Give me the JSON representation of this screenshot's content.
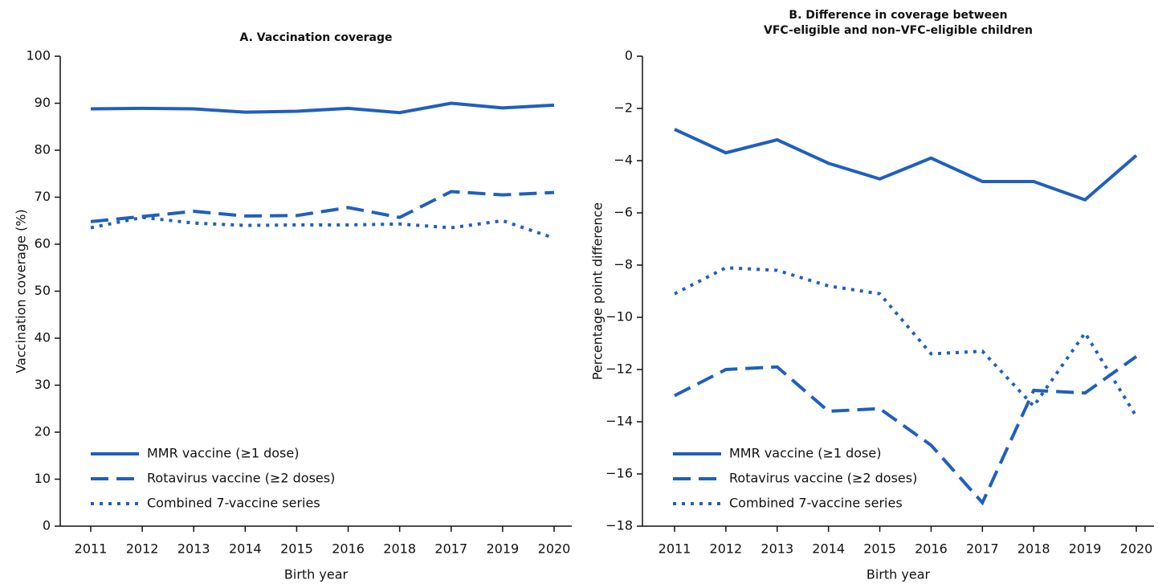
{
  "chart_data": [
    {
      "type": "line",
      "title": [
        "A. Vaccination coverage"
      ],
      "xlabel": "Birth year",
      "ylabel": "Vaccination coverage (%)",
      "categories": [
        "2011",
        "2012",
        "2013",
        "2014",
        "2015",
        "2016",
        "2018",
        "2017",
        "2019",
        "2020"
      ],
      "ylim": [
        0,
        100
      ],
      "yticks": [
        0,
        10,
        20,
        30,
        40,
        50,
        60,
        70,
        80,
        90,
        100
      ],
      "legend": "lower left",
      "series": [
        {
          "name": "MMR vaccine (≥1 dose)",
          "color": "#1f5fbf",
          "dash": "solid",
          "values": [
            88.8,
            88.9,
            88.8,
            88.1,
            88.3,
            88.9,
            88.0,
            90.0,
            89.0,
            89.6
          ]
        },
        {
          "name": "Rotavirus vaccine (≥2 doses)",
          "color": "#1f5fbf",
          "dash": "dashed",
          "values": [
            64.8,
            65.9,
            67.0,
            66.0,
            66.1,
            67.8,
            65.7,
            71.2,
            70.5,
            71.0
          ]
        },
        {
          "name": "Combined 7-vaccine series",
          "color": "#1f5fbf",
          "dash": "dotted",
          "values": [
            63.5,
            65.7,
            64.5,
            64.0,
            64.1,
            64.1,
            64.3,
            63.5,
            65.0,
            61.3
          ]
        }
      ]
    },
    {
      "type": "line",
      "title": [
        "B. Difference in coverage between",
        "VFC-eligible and non–VFC-eligible children"
      ],
      "xlabel": "Birth year",
      "ylabel": "Percentage point difference",
      "categories": [
        "2011",
        "2012",
        "2013",
        "2014",
        "2015",
        "2016",
        "2017",
        "2018",
        "2019",
        "2020"
      ],
      "ylim": [
        -18,
        0
      ],
      "yticks": [
        {
          "value": -18,
          "label": "−18"
        },
        {
          "value": -16,
          "label": "−16"
        },
        {
          "value": -14,
          "label": "−14"
        },
        {
          "value": -12,
          "label": "−12"
        },
        {
          "value": -10,
          "label": "−10"
        },
        {
          "value": -8,
          "label": "−8"
        },
        {
          "value": -6,
          "label": "−6"
        },
        {
          "value": -4,
          "label": "−4"
        },
        {
          "value": -2,
          "label": "−2"
        },
        0
      ],
      "legend": "lower left",
      "series": [
        {
          "name": "MMR vaccine (≥1 dose)",
          "color": "#1f5fbf",
          "dash": "solid",
          "values": [
            -2.8,
            -3.7,
            -3.2,
            -4.1,
            -4.7,
            -3.9,
            -4.8,
            -4.8,
            -5.5,
            -3.8
          ]
        },
        {
          "name": "Rotavirus vaccine (≥2 doses)",
          "color": "#1f5fbf",
          "dash": "dashed",
          "values": [
            -13.0,
            -12.0,
            -11.9,
            -13.6,
            -13.5,
            -14.9,
            -17.1,
            -12.8,
            -12.9,
            -11.5
          ]
        },
        {
          "name": "Combined 7-vaccine series",
          "color": "#1f5fbf",
          "dash": "dotted",
          "values": [
            -9.1,
            -8.1,
            -8.2,
            -8.8,
            -9.1,
            -11.4,
            -11.3,
            -13.4,
            -10.6,
            -13.8
          ]
        }
      ]
    }
  ]
}
